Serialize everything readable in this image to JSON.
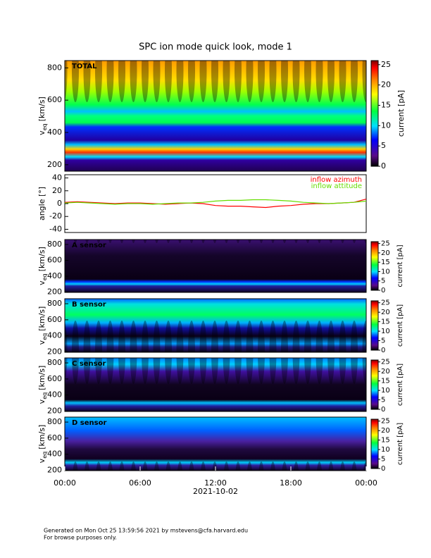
{
  "chart_data": [
    {
      "type": "heatmap",
      "title": "SPC ion mode quick look, mode 1",
      "label": "TOTAL",
      "ylabel": {
        "symbol": "v",
        "subscript": "eq",
        "unit": "[km/s]"
      },
      "ylim": [
        160,
        845
      ],
      "yticks": [
        200,
        400,
        600,
        800
      ],
      "clim": [
        0,
        26
      ],
      "cticks": [
        0,
        5,
        10,
        15,
        20,
        25
      ],
      "clabel": "current [pA]"
    },
    {
      "type": "line",
      "ylabel": "angle [°]",
      "xlim": [
        0,
        24
      ],
      "ylim": [
        -45,
        45
      ],
      "yticks": [
        -40,
        -20,
        0,
        20,
        40
      ],
      "x": [
        0,
        1,
        2,
        3,
        4,
        5,
        6,
        7,
        8,
        9,
        10,
        11,
        12,
        13,
        14,
        15,
        16,
        17,
        18,
        19,
        20,
        21,
        22,
        23,
        24
      ],
      "legend": "upper right",
      "series": [
        {
          "name": "inflow azimuth",
          "color": "#ff0000",
          "values": [
            2,
            3,
            2,
            1,
            0,
            1,
            1,
            0,
            -1,
            0,
            1,
            0,
            -3,
            -4,
            -4,
            -5,
            -6,
            -4,
            -3,
            -1,
            0,
            0,
            1,
            2,
            7
          ]
        },
        {
          "name": "inflow attitude",
          "color": "#66dd00",
          "values": [
            1,
            2,
            1,
            0,
            -1,
            0,
            0,
            -1,
            0,
            1,
            1,
            2,
            4,
            5,
            5,
            6,
            6,
            5,
            4,
            2,
            1,
            0,
            1,
            2,
            4
          ]
        }
      ]
    },
    {
      "type": "heatmap",
      "label": "A sensor",
      "ylabel": {
        "symbol": "v",
        "subscript": "eq",
        "unit": "[km/s]"
      },
      "ylim": [
        196,
        862
      ],
      "yticks": [
        200,
        400,
        600,
        800
      ],
      "clim": [
        0,
        26
      ],
      "cticks": [
        0,
        5,
        10,
        15,
        20,
        25
      ],
      "clabel": "current [pA]"
    },
    {
      "type": "heatmap",
      "label": "B sensor",
      "ylabel": {
        "symbol": "v",
        "subscript": "eq",
        "unit": "[km/s]"
      },
      "ylim": [
        196,
        862
      ],
      "yticks": [
        200,
        400,
        600,
        800
      ],
      "clim": [
        0,
        26
      ],
      "cticks": [
        0,
        5,
        10,
        15,
        20,
        25
      ],
      "clabel": "current [pA]"
    },
    {
      "type": "heatmap",
      "label": "C sensor",
      "ylabel": {
        "symbol": "v",
        "subscript": "eq",
        "unit": "[km/s]"
      },
      "ylim": [
        196,
        862
      ],
      "yticks": [
        200,
        400,
        600,
        800
      ],
      "clim": [
        0,
        26
      ],
      "cticks": [
        0,
        5,
        10,
        15,
        20,
        25
      ],
      "clabel": "current [pA]"
    },
    {
      "type": "heatmap",
      "label": "D sensor",
      "ylabel": {
        "symbol": "v",
        "subscript": "eq",
        "unit": "[km/s]"
      },
      "ylim": [
        196,
        862
      ],
      "yticks": [
        200,
        400,
        600,
        800
      ],
      "clim": [
        0,
        26
      ],
      "cticks": [
        0,
        5,
        10,
        15,
        20,
        25
      ],
      "clabel": "current [pA]",
      "xlabel": "2021-10-02",
      "xlim": [
        0,
        24
      ],
      "xticks": [
        {
          "value": 0,
          "label": "00:00"
        },
        {
          "value": 6,
          "label": "06:00"
        },
        {
          "value": 12,
          "label": "12:00"
        },
        {
          "value": 18,
          "label": "18:00"
        },
        {
          "value": 24,
          "label": "00:00"
        }
      ]
    }
  ],
  "footer": [
    "Generated on Mon Oct 25 13:59:56 2021 by mstevens@cfa.harvard.edu",
    "For browse purposes only."
  ]
}
